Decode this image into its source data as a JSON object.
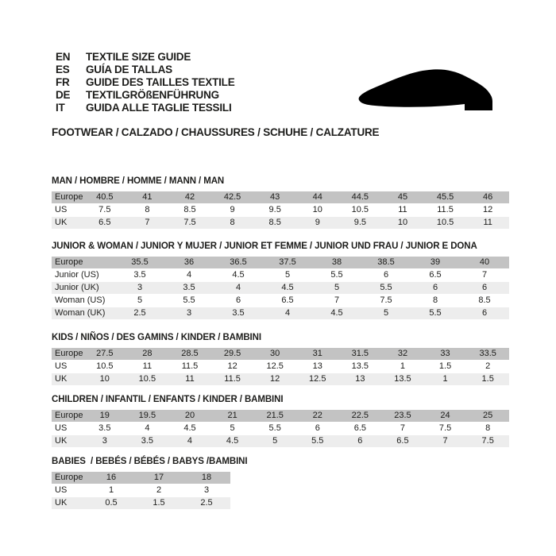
{
  "header": {
    "languages": [
      {
        "code": "EN",
        "label": "TEXTILE SIZE GUIDE"
      },
      {
        "code": "ES",
        "label": "GUÍA DE TALLAS"
      },
      {
        "code": "FR",
        "label": "GUIDE DES TAILLES TEXTILE"
      },
      {
        "code": "DE",
        "label": "TEXTILGRÖßENFÜHRUNG"
      },
      {
        "code": "IT",
        "label": "GUIDA ALLE TAGLIE TESSILI"
      }
    ],
    "category_line": "FOOTWEAR / CALZADO / CHAUSSURES / SCHUHE / CALZATURE",
    "shoe_icon": "dress-shoe-silhouette"
  },
  "sections": [
    {
      "title": "MAN / HOMBRE / HOMME / MANN / MAN",
      "rows": [
        {
          "label": "Europe",
          "header": true,
          "values": [
            "40.5",
            "41",
            "42",
            "42.5",
            "43",
            "44",
            "44.5",
            "45",
            "45.5",
            "46"
          ]
        },
        {
          "label": "US",
          "values": [
            "7.5",
            "8",
            "8.5",
            "9",
            "9.5",
            "10",
            "10.5",
            "11",
            "11.5",
            "12"
          ]
        },
        {
          "label": "UK",
          "values": [
            "6.5",
            "7",
            "7.5",
            "8",
            "8.5",
            "9",
            "9.5",
            "10",
            "10.5",
            "11"
          ]
        }
      ]
    },
    {
      "title": "JUNIOR & WOMAN / JUNIOR Y MUJER / JUNIOR ET FEMME / JUNIOR UND FRAU / JUNIOR E DONA",
      "rows": [
        {
          "label": "Europe",
          "header": true,
          "values": [
            "35.5",
            "36",
            "36.5",
            "37.5",
            "38",
            "38.5",
            "39",
            "40"
          ]
        },
        {
          "label": "Junior (US)",
          "values": [
            "3.5",
            "4",
            "4.5",
            "5",
            "5.5",
            "6",
            "6.5",
            "7"
          ]
        },
        {
          "label": "Junior (UK)",
          "values": [
            "3",
            "3.5",
            "4",
            "4.5",
            "5",
            "5.5",
            "6",
            "6"
          ]
        },
        {
          "label": "Woman (US)",
          "values": [
            "5",
            "5.5",
            "6",
            "6.5",
            "7",
            "7.5",
            "8",
            "8.5"
          ]
        },
        {
          "label": "Woman (UK)",
          "values": [
            "2.5",
            "3",
            "3.5",
            "4",
            "4.5",
            "5",
            "5.5",
            "6"
          ]
        }
      ]
    },
    {
      "title": "KIDS / NIÑOS / DES GAMINS / KINDER / BAMBINI",
      "rows": [
        {
          "label": "Europe",
          "header": true,
          "values": [
            "27.5",
            "28",
            "28.5",
            "29.5",
            "30",
            "31",
            "31.5",
            "32",
            "33",
            "33.5"
          ]
        },
        {
          "label": "US",
          "values": [
            "10.5",
            "11",
            "11.5",
            "12",
            "12.5",
            "13",
            "13.5",
            "1",
            "1.5",
            "2"
          ]
        },
        {
          "label": "UK",
          "values": [
            "10",
            "10.5",
            "11",
            "11.5",
            "12",
            "12.5",
            "13",
            "13.5",
            "1",
            "1.5"
          ]
        }
      ]
    },
    {
      "title": "CHILDREN / INFANTIL / ENFANTS / KINDER / BAMBINI",
      "rows": [
        {
          "label": "Europe",
          "header": true,
          "values": [
            "19",
            "19.5",
            "20",
            "21",
            "21.5",
            "22",
            "22.5",
            "23.5",
            "24",
            "25"
          ]
        },
        {
          "label": "US",
          "values": [
            "3.5",
            "4",
            "4.5",
            "5",
            "5.5",
            "6",
            "6.5",
            "7",
            "7.5",
            "8"
          ]
        },
        {
          "label": "UK",
          "values": [
            "3",
            "3.5",
            "4",
            "4.5",
            "5",
            "5.5",
            "6",
            "6.5",
            "7",
            "7.5"
          ]
        }
      ]
    },
    {
      "title": "BABIES  / BEBÉS / BÉBÉS / BABYS /BAMBINI",
      "rows": [
        {
          "label": "Europe",
          "header": true,
          "values": [
            "16",
            "17",
            "18"
          ]
        },
        {
          "label": "US",
          "values": [
            "1",
            "2",
            "3"
          ]
        },
        {
          "label": "UK",
          "values": [
            "0.5",
            "1.5",
            "2.5"
          ]
        }
      ]
    }
  ],
  "colors": {
    "header_row": "#c3c3c3",
    "alt_row": "#ededed",
    "text": "#1d1d1b",
    "background": "#ffffff",
    "shoe": "#000000"
  }
}
